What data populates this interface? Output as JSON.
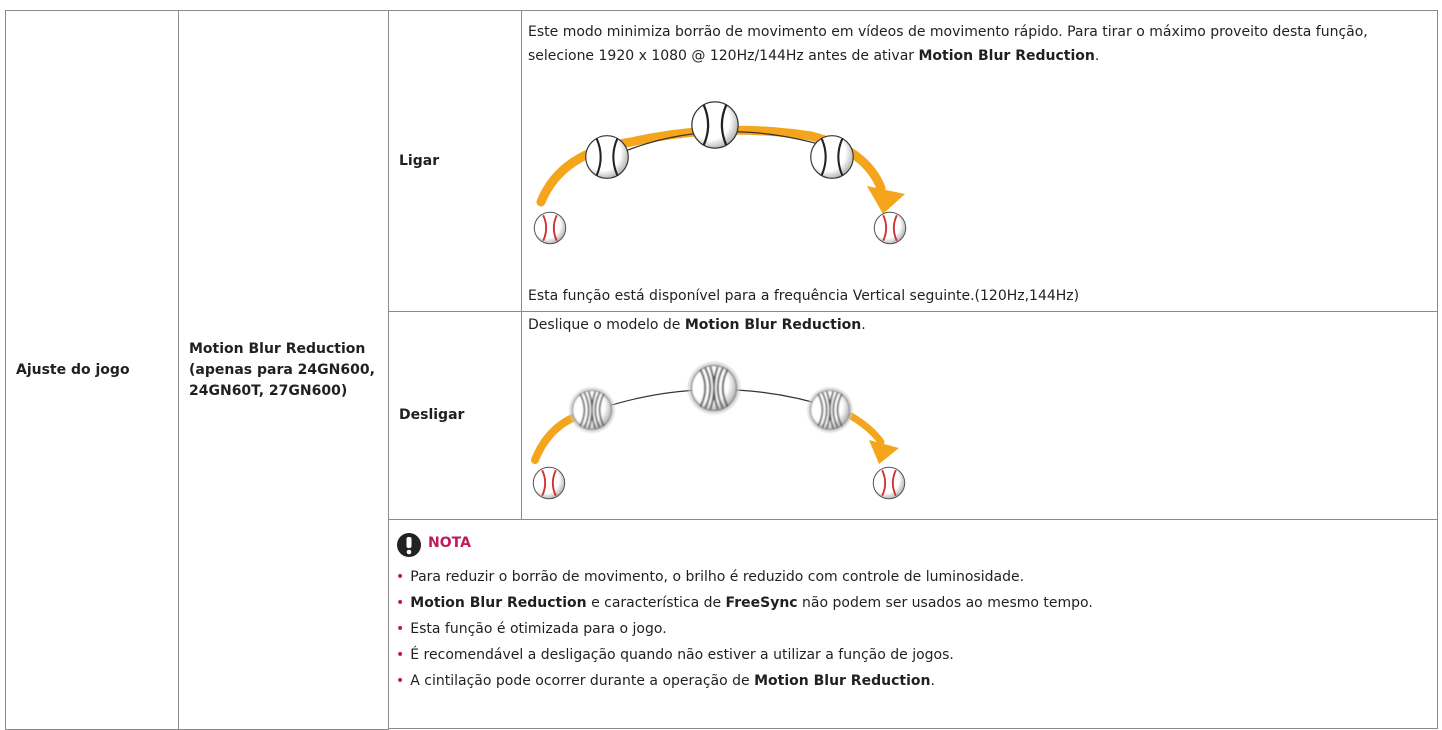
{
  "table": {
    "group": "Ajuste do jogo",
    "feature": "Motion Blur Reduction (apenas para 24GN600, 24GN60T, 27GN600)",
    "on": {
      "label": "Ligar",
      "description": [
        "Este modo minimiza borrão de movimento em vídeos de movimento rápido. Para tirar o máximo proveito desta função, selecione 1920 x 1080 @ 120Hz/144Hz antes de ativar ",
        "Motion Blur Reduction",
        "."
      ],
      "footnote": "Esta função está disponível para a frequência Vertical seguinte.(120Hz,144Hz)"
    },
    "off": {
      "label": "Desligar",
      "description": [
        "Deslique o modelo de ",
        "Motion Blur Reduction",
        "."
      ]
    },
    "note": {
      "title": "NOTA",
      "items": [
        [
          "Para reduzir o borrão de movimento, o brilho é reduzido com controle de luminosidade."
        ],
        [
          "Motion Blur Reduction",
          " e característica de ",
          "FreeSync",
          " não podem ser usados ao mesmo tempo."
        ],
        [
          "Esta função é otimizada para o jogo."
        ],
        [
          "É recomendável a desligação quando não estiver a utilizar a função de jogos."
        ],
        [
          "A cintilação pode ocorrer durante a operação de ",
          "Motion Blur Reduction",
          "."
        ]
      ]
    }
  }
}
